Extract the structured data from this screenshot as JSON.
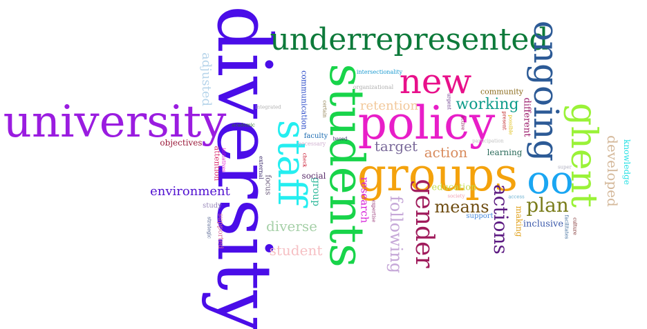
{
  "cloud": {
    "words": [
      {
        "text": "diversity",
        "color": "#4a0de8",
        "style": "serif"
      },
      {
        "text": "university",
        "color": "#9a1ce0",
        "style": "serif"
      },
      {
        "text": "underrepresented",
        "color": "#0d7a3a",
        "style": "serif"
      },
      {
        "text": "students",
        "color": "#18d44a",
        "style": "serif"
      },
      {
        "text": "policy",
        "color": "#e81ec8",
        "style": "serif"
      },
      {
        "text": "groups",
        "color": "#f4a20c",
        "style": "serif"
      },
      {
        "text": "staff",
        "color": "#24eef0",
        "style": "serif"
      },
      {
        "text": "new",
        "color": "#e8108a",
        "style": "serif"
      },
      {
        "text": "ongoing",
        "color": "#2c5a96",
        "style": "serif"
      },
      {
        "text": "ghent",
        "color": "#9af238",
        "style": "serif"
      },
      {
        "text": "oo",
        "color": "#1aa6f2",
        "style": "serif"
      },
      {
        "text": "gender",
        "color": "#a01c5c",
        "style": "serif"
      },
      {
        "text": "actions",
        "color": "#5c1a82",
        "style": "serif"
      },
      {
        "text": "means",
        "color": "#6e4c10",
        "style": "serif"
      },
      {
        "text": "plan",
        "color": "#7a7c1a",
        "style": "serif"
      },
      {
        "text": "following",
        "color": "#c6a8d8",
        "style": "serif"
      },
      {
        "text": "developed",
        "color": "#d4b89a",
        "style": "serif"
      },
      {
        "text": "environment",
        "color": "#5010d0",
        "style": "serif"
      },
      {
        "text": "diverse",
        "color": "#a6d0a8",
        "style": "serif"
      },
      {
        "text": "student",
        "color": "#f6c0c4",
        "style": "serif"
      },
      {
        "text": "working",
        "color": "#0e9c8a",
        "style": "serif"
      },
      {
        "text": "target",
        "color": "#7a6a9a",
        "style": "serif"
      },
      {
        "text": "action",
        "color": "#d88a5c",
        "style": "serif"
      },
      {
        "text": "retention",
        "color": "#f2c89a",
        "style": "serif"
      },
      {
        "text": "adjusted",
        "color": "#b6d4ea",
        "style": "serif"
      },
      {
        "text": "research",
        "color": "#d61cd8",
        "style": "serif"
      },
      {
        "text": "group",
        "color": "#2cb89a",
        "style": "serif"
      },
      {
        "text": "social",
        "color": "#5a2c6a",
        "style": "serif"
      },
      {
        "text": "education",
        "color": "#c6da4a",
        "style": "serif"
      },
      {
        "text": "inclusive",
        "color": "#3a58aa",
        "style": "serif"
      },
      {
        "text": "knowledge",
        "color": "#24e0e4",
        "style": "serif"
      },
      {
        "text": "different",
        "color": "#9a1a6a",
        "style": "serif"
      },
      {
        "text": "community",
        "color": "#8a6a1a",
        "style": "serif"
      },
      {
        "text": "learning",
        "color": "#2a6a5a",
        "style": "serif"
      },
      {
        "text": "making",
        "color": "#e0a01a",
        "style": "serif"
      },
      {
        "text": "objectives",
        "color": "#9a1a3a",
        "style": "serif"
      },
      {
        "text": "communication",
        "color": "#2a4ac8",
        "style": "serif"
      },
      {
        "text": "attention",
        "color": "#d82a6a",
        "style": "serif"
      },
      {
        "text": "focus",
        "color": "#6a5a7a",
        "style": "serif"
      },
      {
        "text": "study",
        "color": "#9a8aba",
        "style": "serif"
      },
      {
        "text": "supported",
        "color": "#d86a9a",
        "style": "serif"
      },
      {
        "text": "support",
        "color": "#4a8adb",
        "style": "serif"
      },
      {
        "text": "faculty",
        "color": "#1a6ab0",
        "style": "serif"
      },
      {
        "text": "intersectionality",
        "color": "#1a9ad0",
        "style": "serif"
      },
      {
        "text": "organizational",
        "color": "#b0b0b0",
        "style": "serif"
      },
      {
        "text": "integrated",
        "color": "#b0b0b0",
        "style": "serif"
      },
      {
        "text": "academic",
        "color": "#2a6a2a",
        "style": "serif"
      },
      {
        "text": "necessary",
        "color": "#d0b0d0",
        "style": "serif"
      },
      {
        "text": "external",
        "color": "#3a2a6a",
        "style": "serif"
      },
      {
        "text": "check",
        "color": "#c8102a",
        "style": "serif"
      },
      {
        "text": "based",
        "color": "#3a2a6a",
        "style": "serif"
      },
      {
        "text": "certain",
        "color": "#8a7a4a",
        "style": "serif"
      },
      {
        "text": "urgent",
        "color": "#6a3a8a",
        "style": "serif"
      },
      {
        "text": "active",
        "color": "#8a1a5a",
        "style": "serif"
      },
      {
        "text": "present",
        "color": "#c02020",
        "style": "serif"
      },
      {
        "text": "possible",
        "color": "#e0c01a",
        "style": "serif"
      },
      {
        "text": "participation",
        "color": "#c0c0c0",
        "style": "serif"
      },
      {
        "text": "society",
        "color": "#f0a0b0",
        "style": "serif"
      },
      {
        "text": "access",
        "color": "#6ab0d0",
        "style": "serif"
      },
      {
        "text": "expertise",
        "color": "#9a3a7a",
        "style": "serif"
      },
      {
        "text": "initiatives",
        "color": "#e01ad0",
        "style": "serif"
      },
      {
        "text": "strategic",
        "color": "#4a5a8a",
        "style": "serif"
      },
      {
        "text": "super",
        "color": "#b0b0c0",
        "style": "serif"
      },
      {
        "text": "facilitates",
        "color": "#3a6a9a",
        "style": "serif"
      },
      {
        "text": "culture",
        "color": "#7a2a2a",
        "style": "serif"
      }
    ]
  }
}
